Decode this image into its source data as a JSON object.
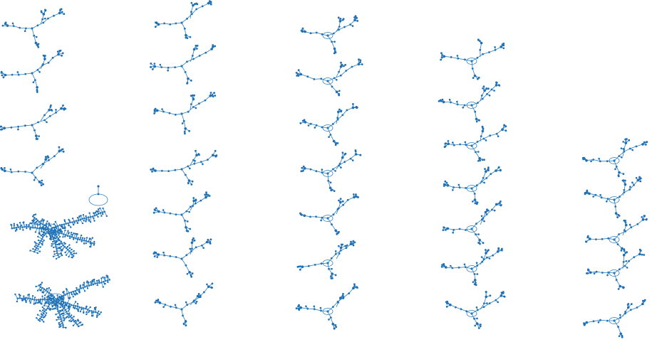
{
  "figure": {
    "kind": "grid of tree-like network graphs",
    "columns": 5,
    "graphs_per_column": [
      7,
      7,
      7,
      7,
      5
    ],
    "node_color": "#1f6fb4",
    "edge_color": "#2c7fbf",
    "background": "#ffffff"
  }
}
